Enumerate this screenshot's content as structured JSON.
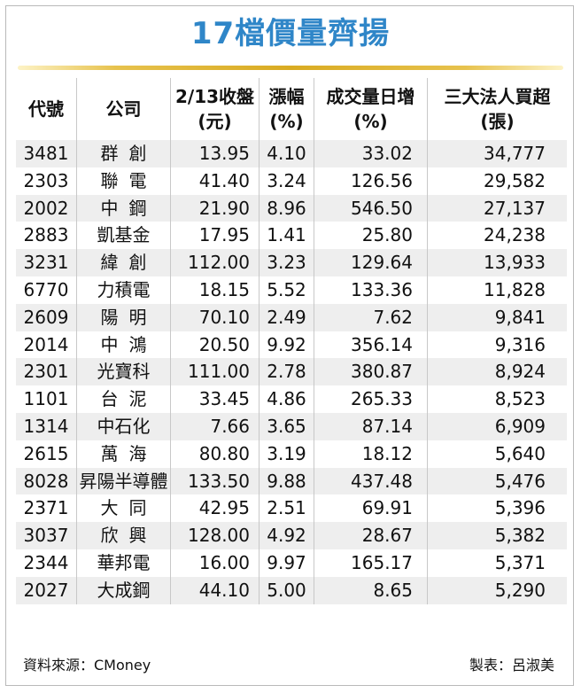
{
  "title": "17檔價量齊揚",
  "headers": {
    "code": "代號",
    "company": "公司",
    "close_l1": "2/13收盤",
    "close_l2": "(元)",
    "chg_l1": "漲幅",
    "chg_l2": "(%)",
    "vol_l1": "成交量日增",
    "vol_l2": "(%)",
    "inst_l1": "三大法人買超",
    "inst_l2": "(張)"
  },
  "rows": [
    {
      "code": "3481",
      "company": "群創",
      "close": "13.95",
      "change": "4.10",
      "volume": "33.02",
      "institutional": "34,777"
    },
    {
      "code": "2303",
      "company": "聯電",
      "close": "41.40",
      "change": "3.24",
      "volume": "126.56",
      "institutional": "29,582"
    },
    {
      "code": "2002",
      "company": "中鋼",
      "close": "21.90",
      "change": "8.96",
      "volume": "546.50",
      "institutional": "27,137"
    },
    {
      "code": "2883",
      "company": "凱基金",
      "close": "17.95",
      "change": "1.41",
      "volume": "25.80",
      "institutional": "24,238"
    },
    {
      "code": "3231",
      "company": "緯創",
      "close": "112.00",
      "change": "3.23",
      "volume": "129.64",
      "institutional": "13,933"
    },
    {
      "code": "6770",
      "company": "力積電",
      "close": "18.15",
      "change": "5.52",
      "volume": "133.36",
      "institutional": "11,828"
    },
    {
      "code": "2609",
      "company": "陽明",
      "close": "70.10",
      "change": "2.49",
      "volume": "7.62",
      "institutional": "9,841"
    },
    {
      "code": "2014",
      "company": "中鴻",
      "close": "20.50",
      "change": "9.92",
      "volume": "356.14",
      "institutional": "9,316"
    },
    {
      "code": "2301",
      "company": "光寶科",
      "close": "111.00",
      "change": "2.78",
      "volume": "380.87",
      "institutional": "8,924"
    },
    {
      "code": "1101",
      "company": "台泥",
      "close": "33.45",
      "change": "4.86",
      "volume": "265.33",
      "institutional": "8,523"
    },
    {
      "code": "1314",
      "company": "中石化",
      "close": "7.66",
      "change": "3.65",
      "volume": "87.14",
      "institutional": "6,909"
    },
    {
      "code": "2615",
      "company": "萬海",
      "close": "80.80",
      "change": "3.19",
      "volume": "18.12",
      "institutional": "5,640"
    },
    {
      "code": "8028",
      "company": "昇陽半導體",
      "close": "133.50",
      "change": "9.88",
      "volume": "437.48",
      "institutional": "5,476"
    },
    {
      "code": "2371",
      "company": "大同",
      "close": "42.95",
      "change": "2.51",
      "volume": "69.91",
      "institutional": "5,396"
    },
    {
      "code": "3037",
      "company": "欣興",
      "close": "128.00",
      "change": "4.92",
      "volume": "28.67",
      "institutional": "5,382"
    },
    {
      "code": "2344",
      "company": "華邦電",
      "close": "16.00",
      "change": "9.97",
      "volume": "165.17",
      "institutional": "5,371"
    },
    {
      "code": "2027",
      "company": "大成鋼",
      "close": "44.10",
      "change": "5.00",
      "volume": "8.65",
      "institutional": "5,290"
    }
  ],
  "footer": {
    "source": "資料來源：CMoney",
    "maker": "製表：呂淑美"
  }
}
